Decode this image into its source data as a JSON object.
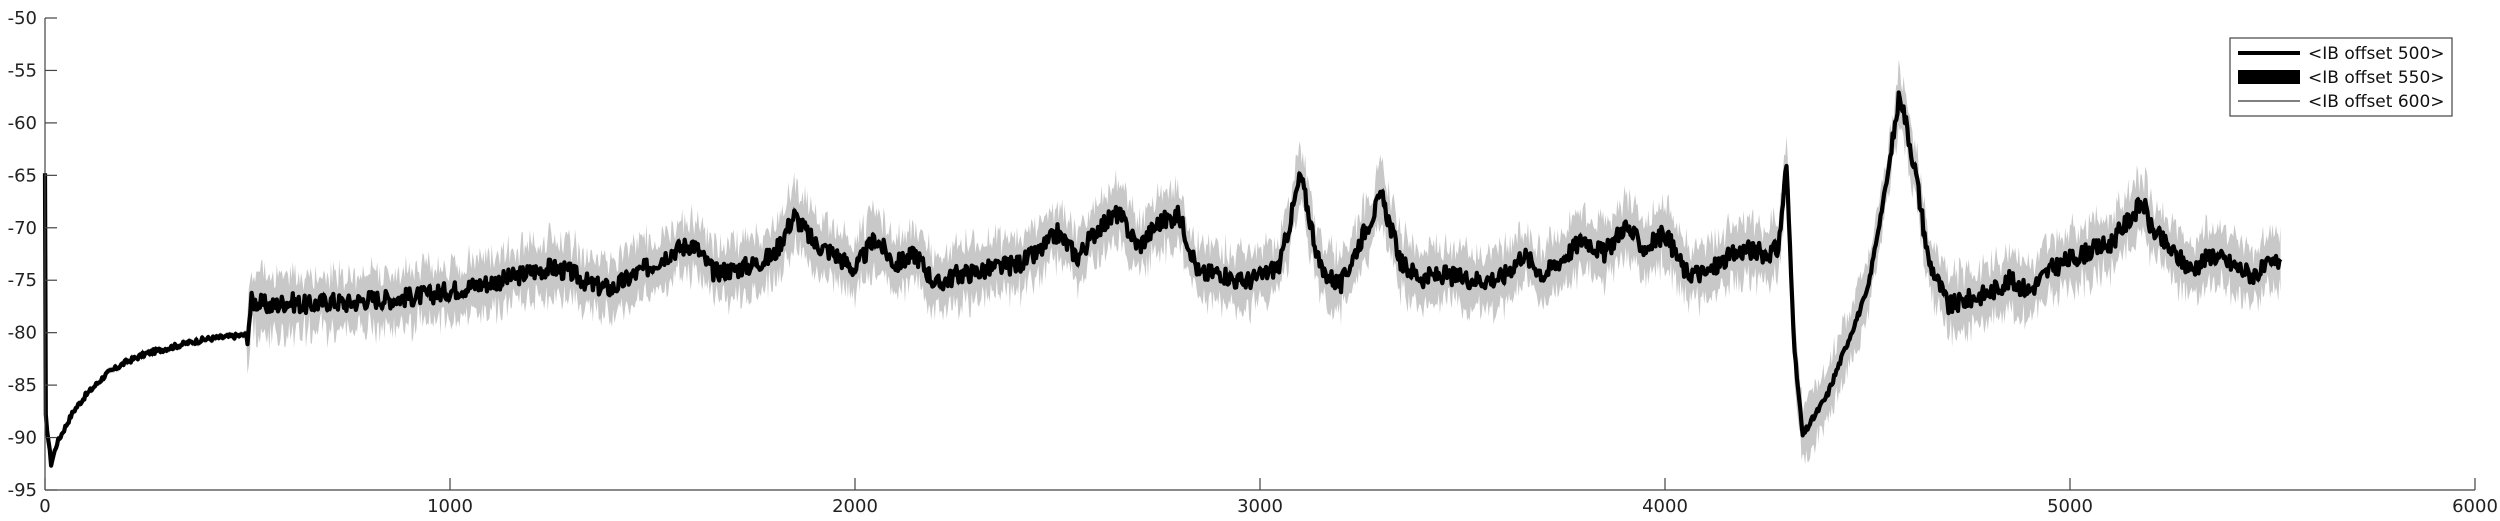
{
  "chart_data": {
    "type": "line",
    "title": "",
    "xlabel": "",
    "ylabel": "",
    "xlim": [
      0,
      6000
    ],
    "ylim": [
      -95,
      -50
    ],
    "xticks": [
      0,
      1000,
      2000,
      3000,
      4000,
      5000,
      6000
    ],
    "yticks": [
      -50,
      -55,
      -60,
      -65,
      -70,
      -75,
      -80,
      -85,
      -90,
      -95
    ],
    "grid": false,
    "legend_position": "top-right",
    "series": [
      {
        "name": "<IB offset 500>",
        "color": "#000000",
        "style": "thick-line",
        "points": [
          [
            0,
            -65
          ],
          [
            2,
            -88
          ],
          [
            15,
            -92.5
          ],
          [
            30,
            -90.5
          ],
          [
            50,
            -89
          ],
          [
            70,
            -87.5
          ],
          [
            100,
            -86
          ],
          [
            150,
            -84
          ],
          [
            200,
            -82.8
          ],
          [
            250,
            -82
          ],
          [
            300,
            -81.5
          ],
          [
            350,
            -81
          ],
          [
            400,
            -80.6
          ],
          [
            450,
            -80.4
          ],
          [
            500,
            -80.2
          ],
          [
            510,
            -77
          ],
          [
            560,
            -77.5
          ],
          [
            600,
            -77
          ],
          [
            650,
            -77.4
          ],
          [
            700,
            -77
          ],
          [
            750,
            -77.2
          ],
          [
            800,
            -76.8
          ],
          [
            850,
            -76.8
          ],
          [
            900,
            -76.6
          ],
          [
            950,
            -76.4
          ],
          [
            1000,
            -76
          ],
          [
            1050,
            -75.6
          ],
          [
            1100,
            -75.2
          ],
          [
            1150,
            -74.8
          ],
          [
            1200,
            -74.2
          ],
          [
            1250,
            -73.8
          ],
          [
            1300,
            -74.3
          ],
          [
            1350,
            -75.5
          ],
          [
            1400,
            -75.8
          ],
          [
            1450,
            -74.6
          ],
          [
            1500,
            -73.5
          ],
          [
            1550,
            -72.2
          ],
          [
            1600,
            -71.5
          ],
          [
            1650,
            -74.2
          ],
          [
            1700,
            -74
          ],
          [
            1750,
            -73.5
          ],
          [
            1800,
            -72.6
          ],
          [
            1850,
            -68.8
          ],
          [
            1900,
            -71.5
          ],
          [
            1950,
            -72.5
          ],
          [
            2000,
            -74
          ],
          [
            2050,
            -71
          ],
          [
            2100,
            -73.5
          ],
          [
            2150,
            -72.5
          ],
          [
            2200,
            -75.5
          ],
          [
            2250,
            -74.5
          ],
          [
            2300,
            -74.2
          ],
          [
            2350,
            -73.8
          ],
          [
            2400,
            -73.5
          ],
          [
            2450,
            -72.5
          ],
          [
            2500,
            -70.5
          ],
          [
            2550,
            -72.8
          ],
          [
            2600,
            -70
          ],
          [
            2650,
            -68.6
          ],
          [
            2700,
            -71.8
          ],
          [
            2750,
            -69.5
          ],
          [
            2800,
            -68.8
          ],
          [
            2850,
            -74.5
          ],
          [
            2900,
            -74.2
          ],
          [
            2950,
            -75.2
          ],
          [
            3000,
            -74.7
          ],
          [
            3050,
            -73.5
          ],
          [
            3100,
            -65
          ],
          [
            3150,
            -74
          ],
          [
            3200,
            -75.5
          ],
          [
            3250,
            -71
          ],
          [
            3300,
            -67
          ],
          [
            3350,
            -73.5
          ],
          [
            3400,
            -74.8
          ],
          [
            3450,
            -74.5
          ],
          [
            3500,
            -74.8
          ],
          [
            3550,
            -75
          ],
          [
            3600,
            -74.7
          ],
          [
            3650,
            -72.5
          ],
          [
            3700,
            -74.5
          ],
          [
            3750,
            -72.8
          ],
          [
            3800,
            -71
          ],
          [
            3850,
            -72.5
          ],
          [
            3900,
            -69.8
          ],
          [
            3950,
            -72
          ],
          [
            4000,
            -70.5
          ],
          [
            4050,
            -74.2
          ],
          [
            4100,
            -74.4
          ],
          [
            4150,
            -73
          ],
          [
            4200,
            -72
          ],
          [
            4250,
            -72.5
          ],
          [
            4280,
            -72
          ],
          [
            4300,
            -64
          ],
          [
            4320,
            -82
          ],
          [
            4340,
            -89.8
          ],
          [
            4400,
            -86
          ],
          [
            4450,
            -81
          ],
          [
            4500,
            -76
          ],
          [
            4550,
            -65
          ],
          [
            4580,
            -57
          ],
          [
            4620,
            -65
          ],
          [
            4650,
            -73
          ],
          [
            4700,
            -77.5
          ],
          [
            4750,
            -76.8
          ],
          [
            4800,
            -76.2
          ],
          [
            4850,
            -75
          ],
          [
            4900,
            -76
          ],
          [
            4950,
            -74
          ],
          [
            5000,
            -73
          ],
          [
            5050,
            -72.2
          ],
          [
            5100,
            -71.5
          ],
          [
            5150,
            -69
          ],
          [
            5180,
            -67.5
          ],
          [
            5200,
            -70
          ],
          [
            5250,
            -72.2
          ],
          [
            5300,
            -74
          ],
          [
            5350,
            -72.5
          ],
          [
            5400,
            -73.5
          ],
          [
            5450,
            -74.5
          ],
          [
            5500,
            -73.5
          ],
          [
            5520,
            -73
          ]
        ]
      },
      {
        "name": "<IB offset 550>",
        "color": "#000000",
        "style": "filled-band",
        "band_halfwidth": 1.0
      },
      {
        "name": "<IB offset 600>",
        "color": "#000000",
        "style": "thin-line",
        "envelope_color": "#bdbdbd",
        "envelope_halfwidth": 2.6
      }
    ]
  }
}
